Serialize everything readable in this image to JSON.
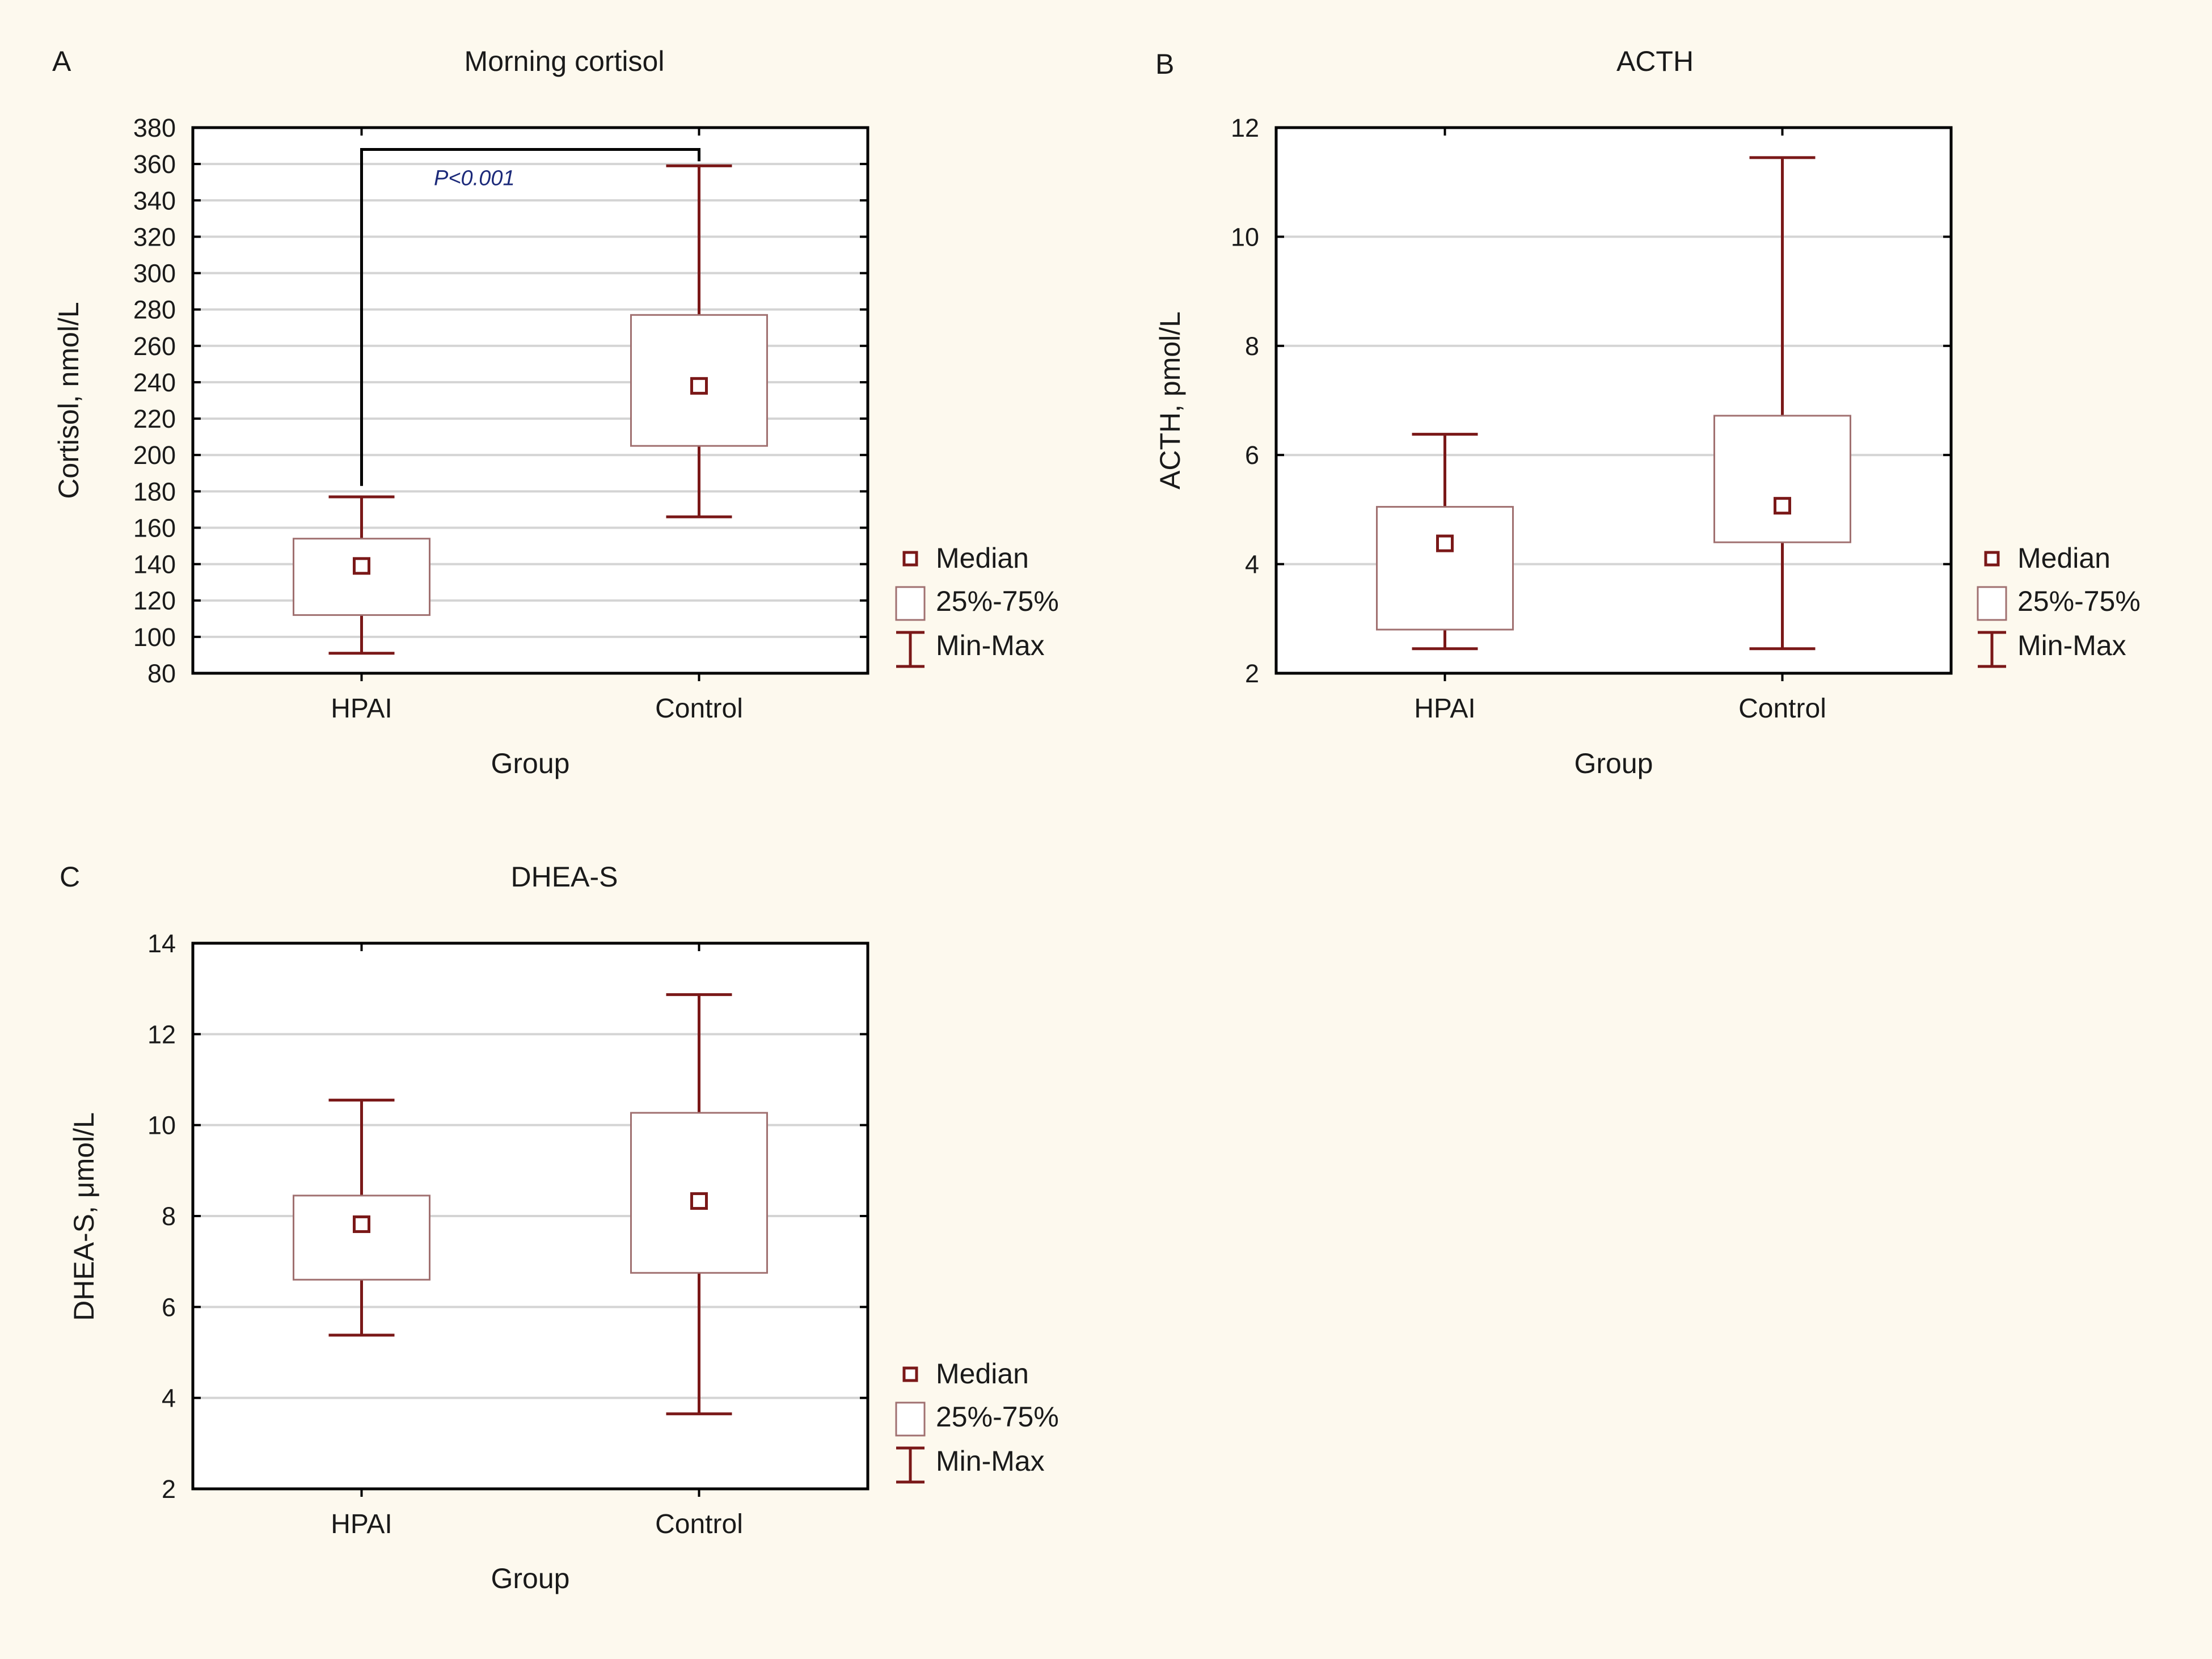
{
  "chart_data": [
    {
      "type": "boxplot",
      "panel_label": "A",
      "title": "Morning cortisol",
      "xlabel": "Group",
      "ylabel": "Cortisol, nmol/L",
      "categories": [
        "HPAI",
        "Control"
      ],
      "ylim": [
        80,
        380
      ],
      "yticks": [
        "80",
        "100",
        "120",
        "140",
        "160",
        "180",
        "200",
        "220",
        "240",
        "260",
        "280",
        "300",
        "320",
        "340",
        "360",
        "380"
      ],
      "grid": true,
      "boxes": [
        {
          "category": "HPAI",
          "min": 91,
          "q1": 112,
          "median": 139,
          "q3": 154,
          "max": 177
        },
        {
          "category": "Control",
          "min": 166,
          "q1": 205,
          "median": 238,
          "q3": 277,
          "max": 359
        }
      ],
      "annotation": {
        "text": "P<0.001",
        "bracket_top": 368
      },
      "legend": {
        "position": "right",
        "median": "Median",
        "box": "25%-75%",
        "whisker": "Min-Max"
      }
    },
    {
      "type": "boxplot",
      "panel_label": "B",
      "title": "ACTH",
      "xlabel": "Group",
      "ylabel": "ACTH, pmol/L",
      "categories": [
        "HPAI",
        "Control"
      ],
      "ylim": [
        2,
        12
      ],
      "yticks": [
        "2",
        "4",
        "6",
        "8",
        "10",
        "12"
      ],
      "grid": true,
      "boxes": [
        {
          "category": "HPAI",
          "min": 2.45,
          "q1": 2.8,
          "median": 4.38,
          "q3": 5.05,
          "max": 6.38
        },
        {
          "category": "Control",
          "min": 2.45,
          "q1": 4.4,
          "median": 5.07,
          "q3": 6.72,
          "max": 11.45
        }
      ],
      "legend": {
        "position": "right",
        "median": "Median",
        "box": "25%-75%",
        "whisker": "Min-Max"
      }
    },
    {
      "type": "boxplot",
      "panel_label": "C",
      "title": "DHEA-S",
      "xlabel": "Group",
      "ylabel": "DHEA-S, μmol/L",
      "categories": [
        "HPAI",
        "Control"
      ],
      "ylim": [
        2,
        14
      ],
      "yticks": [
        "2",
        "4",
        "6",
        "8",
        "10",
        "12",
        "14"
      ],
      "grid": true,
      "boxes": [
        {
          "category": "HPAI",
          "min": 5.38,
          "q1": 6.6,
          "median": 7.82,
          "q3": 8.45,
          "max": 10.55
        },
        {
          "category": "Control",
          "min": 3.65,
          "q1": 6.75,
          "median": 8.33,
          "q3": 10.27,
          "max": 12.87
        }
      ],
      "legend": {
        "position": "right",
        "median": "Median",
        "box": "25%-75%",
        "whisker": "Min-Max"
      }
    }
  ],
  "colors": {
    "background": "#fdf9ee",
    "plot_background": "#ffffff",
    "axis": "#000000",
    "grid": "#d4d4d4",
    "box_edge": "#a07070",
    "whisker": "#7a1818",
    "median": "#7a1818",
    "annotation": "#1c2a7a",
    "bracket": "#000000"
  }
}
